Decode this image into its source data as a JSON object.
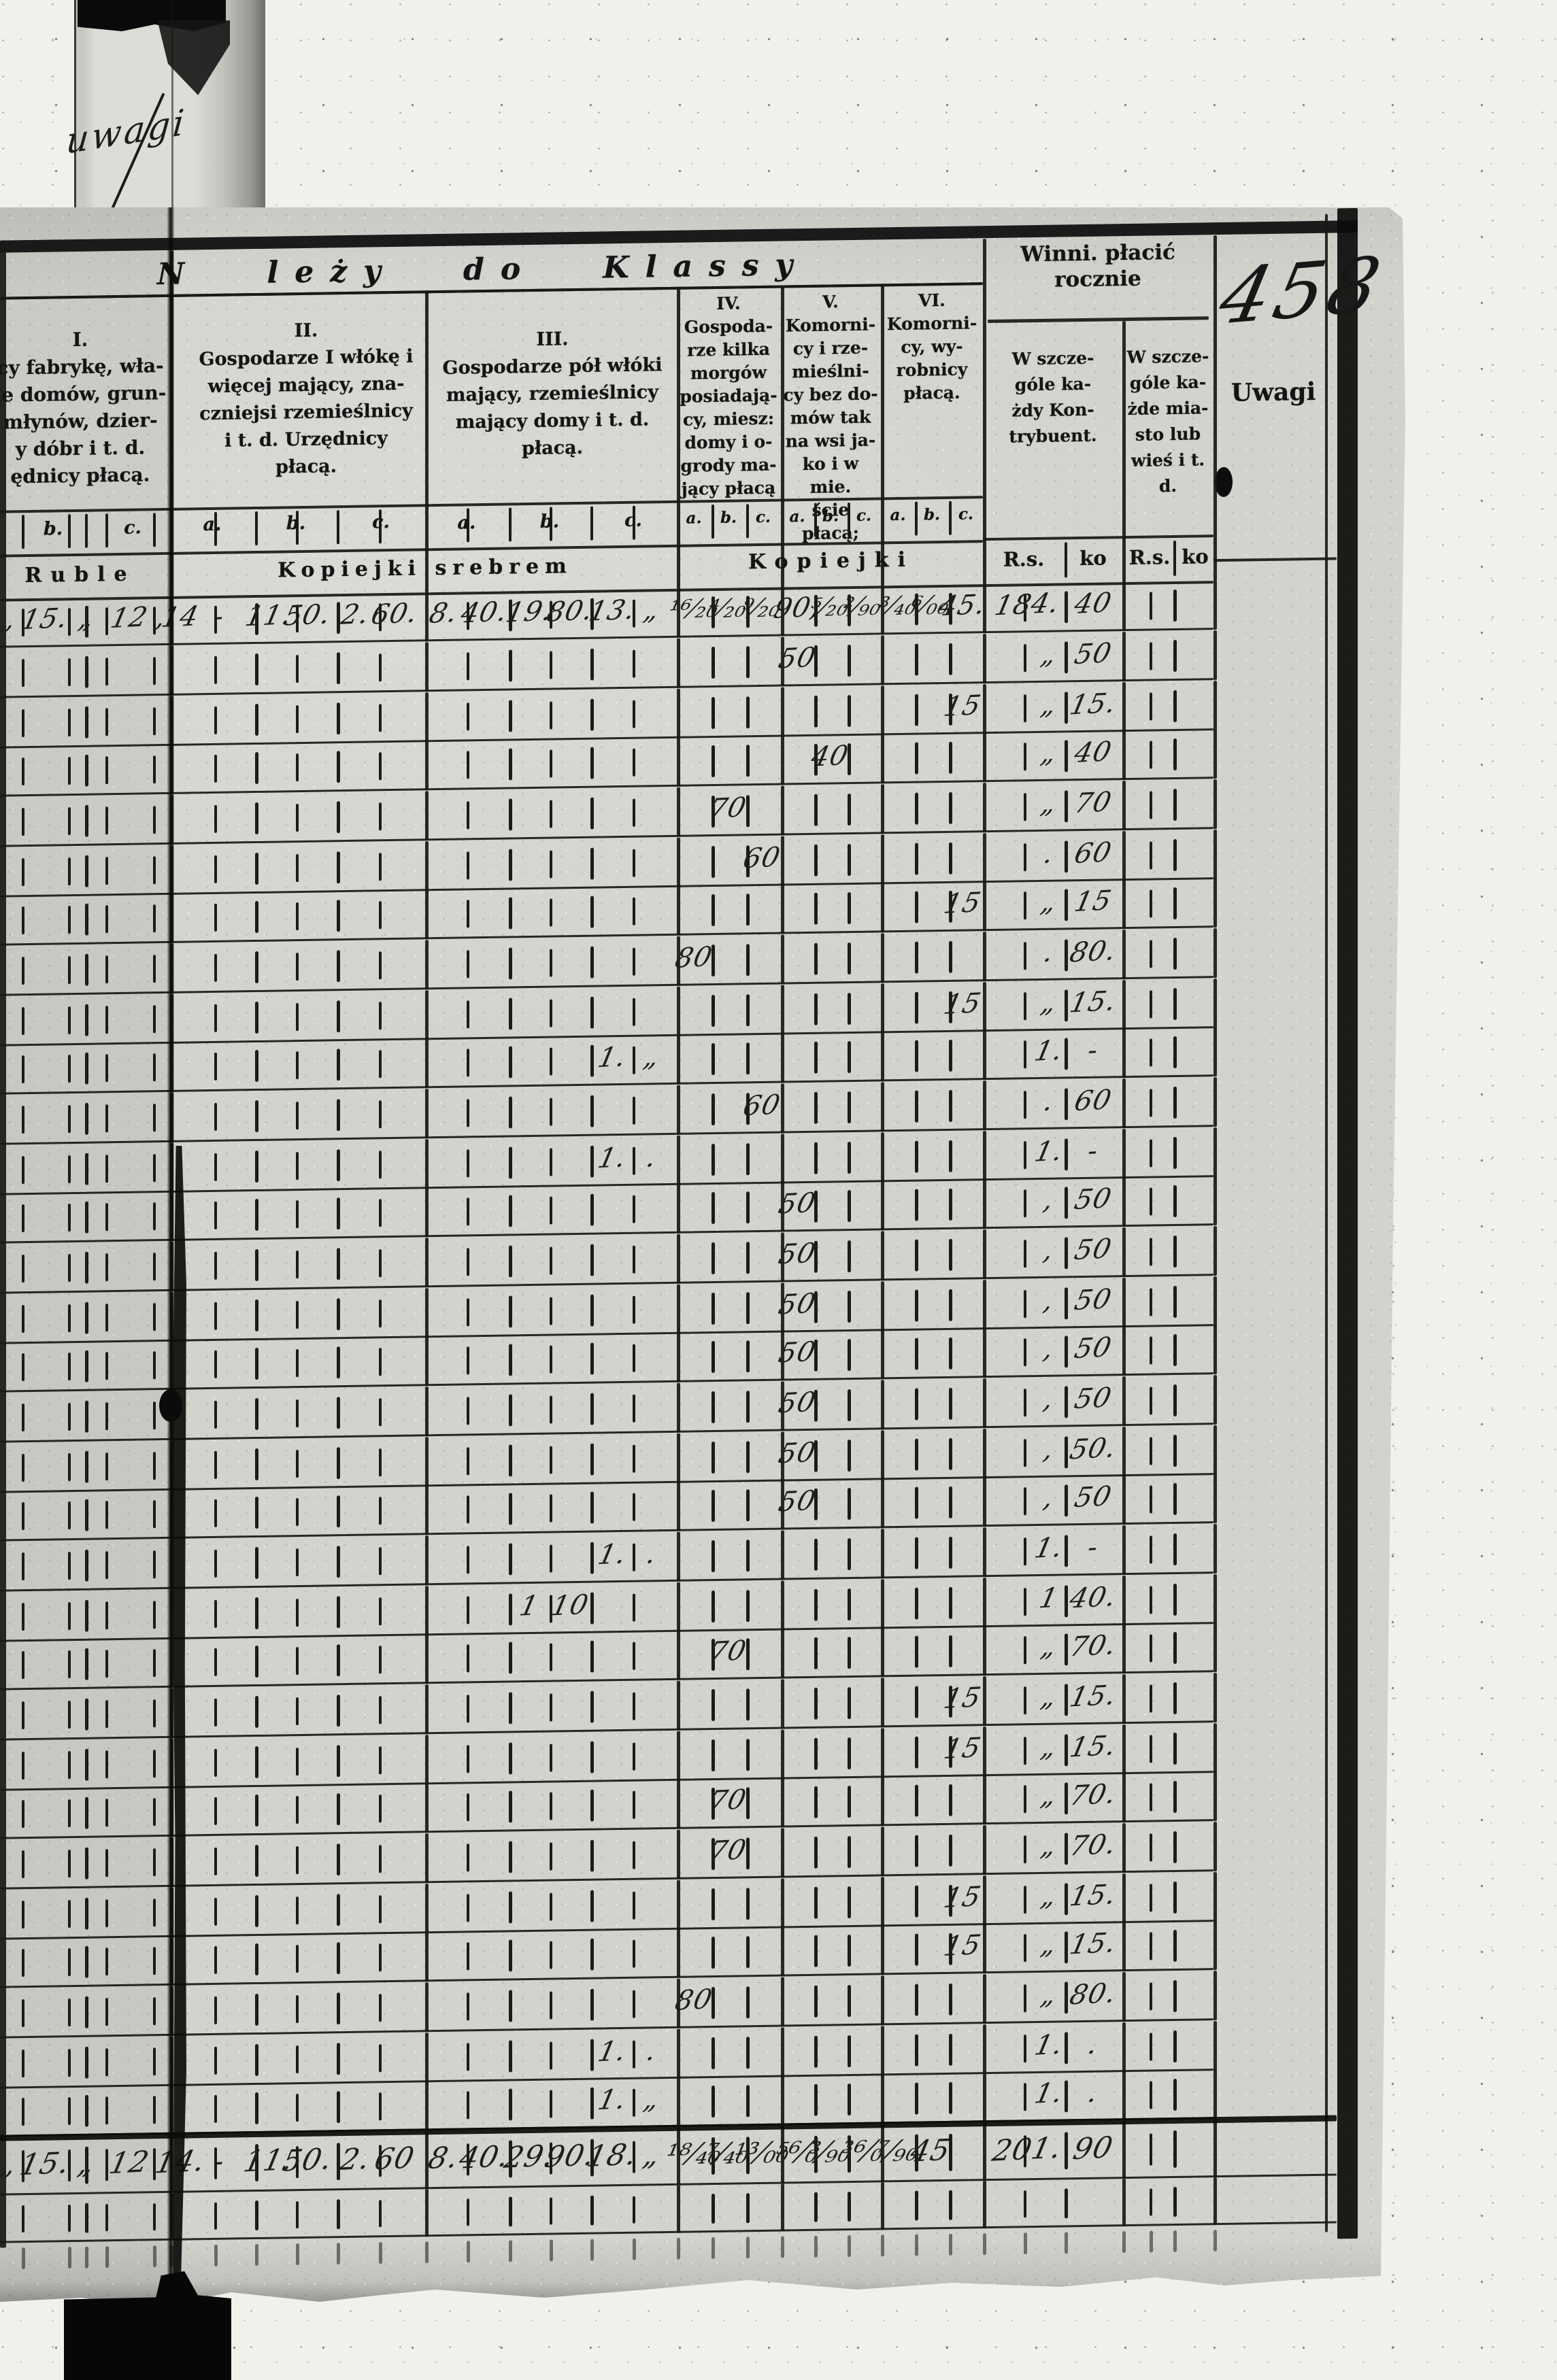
{
  "page": {
    "handwritten_number": "458",
    "tab_annotation": "uwagi"
  },
  "header": {
    "title": "N leży do Klassy",
    "uwagi_label": "Uwagi",
    "winni": {
      "title": "Winni. płacić\nrocznie",
      "sub_contribuent": "W szcze-\ngóle ka-\nżdy Kon-\ntrybuent.",
      "sub_town": "W szcze-\ngóle ka-\nżde mia-\nsto lub\nwieś i t. d."
    },
    "classes": [
      {
        "numeral": "I.",
        "text": "cy fabrykę, wła-\nle domów, grun-\nmłynów, dzier-\ny dóbr i t. d.\nędnicy płacą."
      },
      {
        "numeral": "II.",
        "text": "Gospodarze I włókę i\nwięcej mający, zna-\nczniejsi rzemieślnicy\ni t. d. Urzędnicy\npłacą."
      },
      {
        "numeral": "III.",
        "text": "Gospodarze pół włóki\nmający, rzemieślnicy\nmający domy i t. d.\npłacą."
      },
      {
        "numeral": "IV.",
        "text": "Gospoda-\nrze kilka\nmorgów\nposiadają-\ncy, miesz:\ndomy i o-\ngrody ma-\njący płacą"
      },
      {
        "numeral": "V.",
        "text": "Komorni-\ncy i rze-\nmieślni-\ncy bez do-\nmów tak\nna wsi ja-\nko i w mie.\nście płacą;"
      },
      {
        "numeral": "VI.",
        "text": "Komorni-\ncy, wy-\nrobnicy\npłacą."
      }
    ],
    "abc": [
      "a.",
      "b.",
      "c."
    ],
    "units": {
      "ruble": "Ruble",
      "kopiejki_srebrem": "Kopiejki srebrem",
      "kopiejki": "Kopiejki",
      "rs": "R.s.",
      "ko": "ko"
    }
  },
  "table": {
    "rows": [
      {
        "cells": [
          [
            "I_a2",
            "„"
          ],
          [
            "I_b1",
            "15."
          ],
          [
            "I_b2",
            "„"
          ],
          [
            "I_c1",
            "12"
          ],
          [
            "I_c2",
            ","
          ],
          [
            "II_a1",
            "14"
          ],
          [
            "II_a2",
            "-"
          ],
          [
            "II_b1",
            "11."
          ],
          [
            "II_b2",
            "50."
          ],
          [
            "II_c1",
            "2."
          ],
          [
            "II_c2",
            "60."
          ],
          [
            "III_a1",
            "8."
          ],
          [
            "III_a2",
            "40."
          ],
          [
            "III_b1",
            "19."
          ],
          [
            "III_b2",
            "80."
          ],
          [
            "III_c1",
            "13."
          ],
          [
            "III_c2",
            "„"
          ],
          [
            "IV_a",
            "¹⁶⁄₂₀"
          ],
          [
            "IV_b",
            "⁴⁄₂₀"
          ],
          [
            "IV_c",
            "⁹⁄₂₀"
          ],
          [
            "V_a",
            "90,"
          ],
          [
            "V_b",
            "⁵⁄₂₀"
          ],
          [
            "V_c",
            "²⁄₉₀"
          ],
          [
            "VI_a",
            "³⁄₄₀"
          ],
          [
            "VI_b",
            "⁶⁄₀₀"
          ],
          [
            "VI_c",
            "45."
          ],
          [
            "RS1",
            "184."
          ],
          [
            "KO1",
            "40"
          ]
        ]
      },
      {
        "cells": [
          [
            "V_a",
            "50"
          ],
          [
            "RS1b",
            "„"
          ],
          [
            "KO1",
            "50"
          ]
        ]
      },
      {
        "cells": [
          [
            "VI_c",
            "15"
          ],
          [
            "RS1b",
            "„"
          ],
          [
            "KO1",
            "15."
          ]
        ]
      },
      {
        "cells": [
          [
            "V_b",
            "40"
          ],
          [
            "RS1b",
            "„"
          ],
          [
            "KO1",
            "40"
          ]
        ]
      },
      {
        "cells": [
          [
            "IV_b",
            "70"
          ],
          [
            "RS1b",
            "„"
          ],
          [
            "KO1",
            "70"
          ]
        ]
      },
      {
        "cells": [
          [
            "IV_c",
            "60"
          ],
          [
            "RS1b",
            "."
          ],
          [
            "KO1",
            "60"
          ]
        ]
      },
      {
        "cells": [
          [
            "VI_c",
            "15"
          ],
          [
            "RS1b",
            "„"
          ],
          [
            "KO1",
            "15"
          ]
        ]
      },
      {
        "cells": [
          [
            "IV_a",
            "80"
          ],
          [
            "RS1b",
            "."
          ],
          [
            "KO1",
            "80."
          ]
        ]
      },
      {
        "cells": [
          [
            "VI_c",
            "15"
          ],
          [
            "RS1b",
            "„"
          ],
          [
            "KO1",
            "15."
          ]
        ]
      },
      {
        "cells": [
          [
            "III_c1",
            "1."
          ],
          [
            "III_c2",
            "„"
          ],
          [
            "RS1b",
            "1."
          ],
          [
            "KO1",
            "-"
          ]
        ]
      },
      {
        "cells": [
          [
            "IV_c",
            "60"
          ],
          [
            "RS1b",
            "."
          ],
          [
            "KO1",
            "60"
          ]
        ]
      },
      {
        "cells": [
          [
            "III_c1",
            "1."
          ],
          [
            "III_c2",
            "."
          ],
          [
            "RS1b",
            "1."
          ],
          [
            "KO1",
            "-"
          ]
        ]
      },
      {
        "cells": [
          [
            "V_a",
            "50"
          ],
          [
            "RS1b",
            ","
          ],
          [
            "KO1",
            "50"
          ]
        ]
      },
      {
        "cells": [
          [
            "V_a",
            "50"
          ],
          [
            "RS1b",
            ","
          ],
          [
            "KO1",
            "50"
          ]
        ]
      },
      {
        "cells": [
          [
            "V_a",
            "50"
          ],
          [
            "RS1b",
            ","
          ],
          [
            "KO1",
            "50"
          ]
        ]
      },
      {
        "cells": [
          [
            "V_a",
            "50"
          ],
          [
            "RS1b",
            ","
          ],
          [
            "KO1",
            "50"
          ]
        ]
      },
      {
        "cells": [
          [
            "V_a",
            "50"
          ],
          [
            "RS1b",
            ","
          ],
          [
            "KO1",
            "50"
          ]
        ]
      },
      {
        "cells": [
          [
            "V_a",
            "50"
          ],
          [
            "RS1b",
            ","
          ],
          [
            "KO1",
            "50."
          ]
        ]
      },
      {
        "cells": [
          [
            "V_a",
            "50"
          ],
          [
            "RS1b",
            ","
          ],
          [
            "KO1",
            "50"
          ]
        ]
      },
      {
        "cells": [
          [
            "III_c1",
            "1."
          ],
          [
            "III_c2",
            "."
          ],
          [
            "RS1b",
            "1."
          ],
          [
            "KO1",
            "-"
          ]
        ]
      },
      {
        "cells": [
          [
            "III_b1",
            "1"
          ],
          [
            "III_b2",
            "10"
          ],
          [
            "RS1b",
            "1"
          ],
          [
            "KO1",
            "40."
          ]
        ]
      },
      {
        "cells": [
          [
            "IV_b",
            "70"
          ],
          [
            "RS1b",
            "„"
          ],
          [
            "KO1",
            "70."
          ]
        ]
      },
      {
        "cells": [
          [
            "VI_c",
            "15"
          ],
          [
            "RS1b",
            "„"
          ],
          [
            "KO1",
            "15."
          ]
        ]
      },
      {
        "cells": [
          [
            "VI_c",
            "15"
          ],
          [
            "RS1b",
            "„"
          ],
          [
            "KO1",
            "15."
          ]
        ]
      },
      {
        "cells": [
          [
            "IV_b",
            "70"
          ],
          [
            "RS1b",
            "„"
          ],
          [
            "KO1",
            "70."
          ]
        ]
      },
      {
        "cells": [
          [
            "IV_b",
            "70"
          ],
          [
            "RS1b",
            "„"
          ],
          [
            "KO1",
            "70."
          ]
        ]
      },
      {
        "cells": [
          [
            "VI_c",
            "15"
          ],
          [
            "RS1b",
            "„"
          ],
          [
            "KO1",
            "15."
          ]
        ]
      },
      {
        "cells": [
          [
            "VI_c",
            "15"
          ],
          [
            "RS1b",
            "„"
          ],
          [
            "KO1",
            "15."
          ]
        ]
      },
      {
        "cells": [
          [
            "IV_a",
            "80"
          ],
          [
            "RS1b",
            "„"
          ],
          [
            "KO1",
            "80."
          ]
        ]
      },
      {
        "cells": [
          [
            "III_c1",
            "1."
          ],
          [
            "III_c2",
            "."
          ],
          [
            "RS1b",
            "1."
          ],
          [
            "KO1",
            "."
          ]
        ]
      },
      {
        "cells": [
          [
            "III_c1",
            "1."
          ],
          [
            "III_c2",
            "„"
          ],
          [
            "RS1b",
            "1."
          ],
          [
            "KO1",
            "."
          ]
        ]
      }
    ],
    "totals": {
      "cells": [
        [
          "I_a2",
          "„"
        ],
        [
          "I_b1",
          "15."
        ],
        [
          "I_b2",
          "„"
        ],
        [
          "I_c1",
          "12"
        ],
        [
          "II_a1",
          "14."
        ],
        [
          "II_a2",
          "-"
        ],
        [
          "II_b1",
          "11."
        ],
        [
          "II_b2",
          "50."
        ],
        [
          "II_c1",
          "2."
        ],
        [
          "II_c2",
          "60"
        ],
        [
          "III_a1",
          "8."
        ],
        [
          "III_a2",
          "40."
        ],
        [
          "III_b1",
          "29."
        ],
        [
          "III_b2",
          "90."
        ],
        [
          "III_c1",
          "18."
        ],
        [
          "III_c2",
          "„"
        ],
        [
          "IV_a",
          "¹⁸⁄₄₀"
        ],
        [
          "IV_b",
          "⁷⁄₄₀"
        ],
        [
          "IV_c",
          "¹³⁄₀₀"
        ],
        [
          "V_a",
          "⁵⁶⁄₀"
        ],
        [
          "V_b",
          "³⁄₉₀"
        ],
        [
          "V_c",
          "³⁶⁄₀"
        ],
        [
          "VI_a",
          "⁷⁄₉₀"
        ],
        [
          "VI_b",
          "45"
        ],
        [
          "RS1",
          "201."
        ],
        [
          "KO1",
          "90"
        ]
      ]
    }
  }
}
